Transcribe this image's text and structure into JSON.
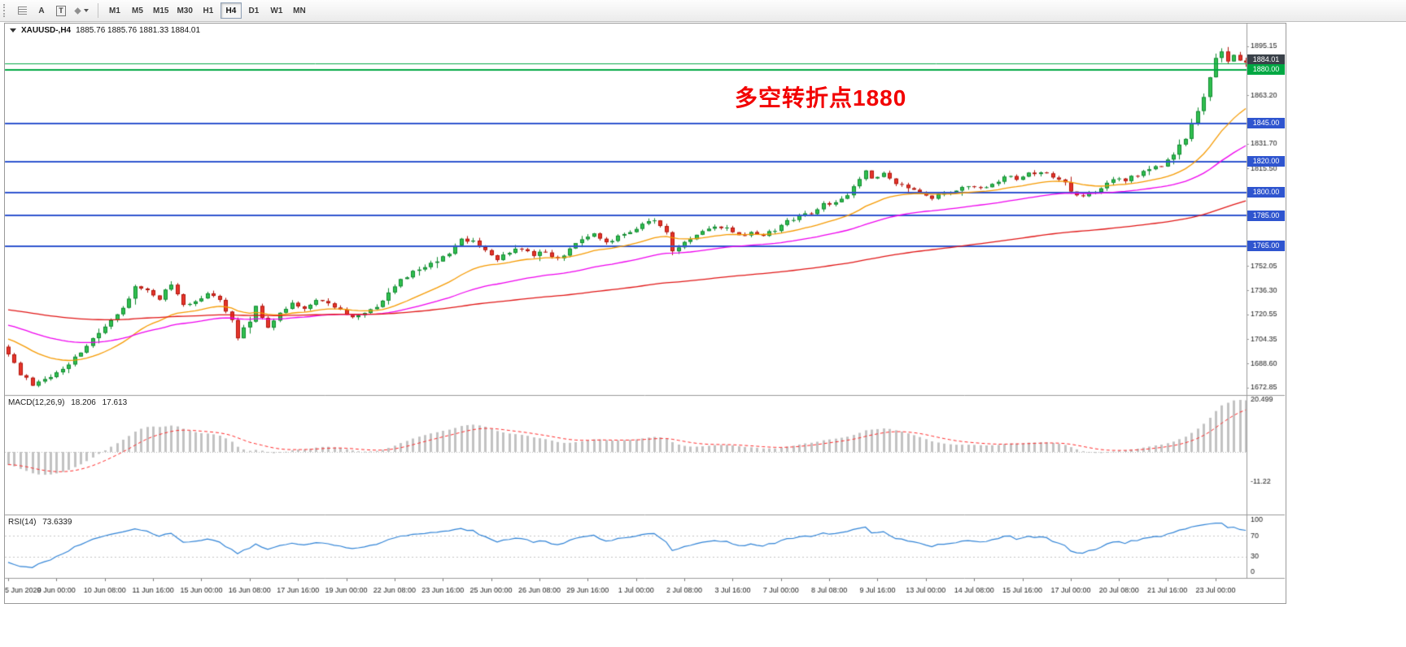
{
  "toolbar": {
    "buttons": [
      {
        "name": "chart-grid",
        "label": ""
      },
      {
        "name": "annotation-letter",
        "label": "A"
      },
      {
        "name": "text-tool",
        "label": "T"
      },
      {
        "name": "shapes-dropdown",
        "label": ""
      }
    ],
    "timeframes": [
      {
        "label": "M1"
      },
      {
        "label": "M5"
      },
      {
        "label": "M15"
      },
      {
        "label": "M30"
      },
      {
        "label": "H1"
      },
      {
        "label": "H4"
      },
      {
        "label": "D1"
      },
      {
        "label": "W1"
      },
      {
        "label": "MN"
      }
    ],
    "active_timeframe": "H4"
  },
  "chart": {
    "symbol_title": "XAUUSD-,H4",
    "ohlc_text": "1885.76 1885.76 1881.33 1884.01",
    "annotation_text": "多空转折点1880",
    "axis": {
      "price_ticks": [
        {
          "label": "1895.15",
          "price": 1895.15
        },
        {
          "label": "1863.20",
          "price": 1863.2
        },
        {
          "label": "1831.70",
          "price": 1831.7
        },
        {
          "label": "1815.50",
          "price": 1815.5
        },
        {
          "label": "1752.05",
          "price": 1752.05
        },
        {
          "label": "1736.30",
          "price": 1736.3
        },
        {
          "label": "1720.55",
          "price": 1720.55
        },
        {
          "label": "1704.35",
          "price": 1704.35
        },
        {
          "label": "1688.60",
          "price": 1688.6
        },
        {
          "label": "1672.85",
          "price": 1672.85
        }
      ],
      "time_labels": [
        "5 Jun 2020",
        "9 Jun 00:00",
        "10 Jun 08:00",
        "11 Jun 16:00",
        "15 Jun 00:00",
        "16 Jun 08:00",
        "17 Jun 16:00",
        "19 Jun 00:00",
        "22 Jun 08:00",
        "23 Jun 16:00",
        "25 Jun 00:00",
        "26 Jun 08:00",
        "29 Jun 16:00",
        "1 Jul 00:00",
        "2 Jul 08:00",
        "3 Jul 16:00",
        "7 Jul 00:00",
        "8 Jul 08:00",
        "9 Jul 16:00",
        "13 Jul 00:00",
        "14 Jul 08:00",
        "15 Jul 16:00",
        "17 Jul 00:00",
        "20 Jul 08:00",
        "21 Jul 16:00",
        "23 Jul 00:00"
      ]
    },
    "price_labels": [
      {
        "label": "1884.01",
        "price": 1884.01,
        "bg": "#3a4149",
        "type": "current"
      },
      {
        "label": "1880.00",
        "price": 1880.0,
        "bg": "#00a843",
        "type": "hline-green"
      },
      {
        "label": "1845.00",
        "price": 1845.0,
        "bg": "#2f55cf",
        "type": "hline-blue"
      },
      {
        "label": "1820.00",
        "price": 1820.0,
        "bg": "#2f55cf",
        "type": "hline-blue"
      },
      {
        "label": "1800.00",
        "price": 1800.0,
        "bg": "#2f55cf",
        "type": "hline-blue"
      },
      {
        "label": "1785.00",
        "price": 1785.0,
        "bg": "#2f55cf",
        "type": "hline-blue"
      },
      {
        "label": "1765.00",
        "price": 1765.0,
        "bg": "#2f55cf",
        "type": "hline-blue"
      }
    ]
  },
  "indicators": {
    "macd": {
      "title": "MACD(12,26,9)",
      "value_main": "18.206",
      "value_signal": "17.613",
      "scale_top": "20.499",
      "scale_bottom": "-11.22"
    },
    "rsi": {
      "title": "RSI(14)",
      "value": "73.6339",
      "levels": [
        "100",
        "70",
        "30",
        "0"
      ]
    }
  },
  "colors": {
    "bull": "#30bf4f",
    "bull_edge": "#0f8a2f",
    "bear": "#e5352b",
    "bear_edge": "#b2140b",
    "macd_hist": "#c2c2c2",
    "macd_signal": "#ff2b2b",
    "rsi_line": "#3083d6",
    "annotation": "#f20000",
    "hline_blue": "#2f55cf",
    "hline_green": "#00a843",
    "current_label_bg": "#3a4149"
  },
  "chart_data": {
    "type": "candlestick",
    "symbol": "XAUUSD",
    "period": "H4",
    "visible_range": {
      "from": "5 Jun 2020",
      "to": "23 Jul 2020"
    },
    "price_axis_range": [
      1669.0,
      1909.5
    ],
    "ohlc_current": {
      "open": 1885.76,
      "high": 1885.76,
      "low": 1881.33,
      "close": 1884.01
    },
    "horizontal_lines": [
      {
        "price": 1884.01,
        "color": "#00a843",
        "width": 1,
        "role": "current-price"
      },
      {
        "price": 1880.0,
        "color": "#00a843",
        "width": 2,
        "role": "pivot-1880"
      },
      {
        "price": 1845.0,
        "color": "#2f55cf",
        "width": 2,
        "role": "level"
      },
      {
        "price": 1820.0,
        "color": "#2f55cf",
        "width": 2,
        "role": "level"
      },
      {
        "price": 1800.0,
        "color": "#2f55cf",
        "width": 2,
        "role": "level"
      },
      {
        "price": 1785.0,
        "color": "#2f55cf",
        "width": 2,
        "role": "level"
      },
      {
        "price": 1765.0,
        "color": "#2f55cf",
        "width": 2,
        "role": "level"
      }
    ],
    "moving_averages": [
      {
        "period": 21,
        "method": "ema",
        "color": "#f59a00"
      },
      {
        "period": 50,
        "method": "ema",
        "color": "#ee00ee"
      },
      {
        "period": 150,
        "method": "ema",
        "color": "#e01616"
      }
    ],
    "macd": {
      "fast": 12,
      "slow": 26,
      "signal": 9
    },
    "rsi_period": 14,
    "n_candles": 206,
    "candles_per_label": 8,
    "price_anchors": [
      [
        0,
        1694
      ],
      [
        2,
        1682
      ],
      [
        4,
        1675
      ],
      [
        6,
        1678
      ],
      [
        8,
        1682
      ],
      [
        10,
        1689
      ],
      [
        11,
        1693
      ],
      [
        13,
        1700
      ],
      [
        15,
        1708
      ],
      [
        17,
        1716
      ],
      [
        19,
        1724
      ],
      [
        21,
        1740
      ],
      [
        23,
        1737
      ],
      [
        25,
        1731
      ],
      [
        27,
        1741
      ],
      [
        29,
        1727
      ],
      [
        31,
        1728
      ],
      [
        33,
        1734
      ],
      [
        35,
        1731
      ],
      [
        37,
        1716
      ],
      [
        38,
        1706
      ],
      [
        40,
        1716
      ],
      [
        41,
        1725
      ],
      [
        43,
        1713
      ],
      [
        45,
        1722
      ],
      [
        47,
        1727
      ],
      [
        49,
        1724
      ],
      [
        51,
        1730
      ],
      [
        53,
        1727
      ],
      [
        55,
        1723
      ],
      [
        57,
        1719
      ],
      [
        59,
        1722
      ],
      [
        61,
        1726
      ],
      [
        63,
        1735
      ],
      [
        65,
        1743
      ],
      [
        67,
        1748
      ],
      [
        69,
        1752
      ],
      [
        71,
        1755
      ],
      [
        73,
        1761
      ],
      [
        75,
        1770
      ],
      [
        77,
        1768
      ],
      [
        79,
        1762
      ],
      [
        81,
        1757
      ],
      [
        83,
        1761
      ],
      [
        85,
        1764
      ],
      [
        87,
        1759
      ],
      [
        89,
        1762
      ],
      [
        91,
        1756
      ],
      [
        93,
        1763
      ],
      [
        95,
        1770
      ],
      [
        97,
        1773
      ],
      [
        99,
        1768
      ],
      [
        101,
        1771
      ],
      [
        103,
        1774
      ],
      [
        105,
        1780
      ],
      [
        107,
        1781
      ],
      [
        109,
        1775
      ],
      [
        110,
        1762
      ],
      [
        112,
        1768
      ],
      [
        113,
        1770
      ],
      [
        115,
        1774
      ],
      [
        117,
        1778
      ],
      [
        119,
        1776
      ],
      [
        121,
        1772
      ],
      [
        123,
        1774
      ],
      [
        125,
        1772
      ],
      [
        127,
        1776
      ],
      [
        129,
        1782
      ],
      [
        131,
        1784
      ],
      [
        133,
        1787
      ],
      [
        135,
        1792
      ],
      [
        137,
        1794
      ],
      [
        139,
        1799
      ],
      [
        141,
        1809
      ],
      [
        142,
        1814
      ],
      [
        143,
        1809
      ],
      [
        145,
        1812
      ],
      [
        147,
        1806
      ],
      [
        149,
        1803
      ],
      [
        151,
        1800
      ],
      [
        153,
        1797
      ],
      [
        155,
        1799
      ],
      [
        157,
        1801
      ],
      [
        159,
        1804
      ],
      [
        161,
        1802
      ],
      [
        163,
        1806
      ],
      [
        165,
        1810
      ],
      [
        167,
        1809
      ],
      [
        169,
        1812
      ],
      [
        171,
        1814
      ],
      [
        173,
        1810
      ],
      [
        175,
        1806
      ],
      [
        177,
        1797
      ],
      [
        179,
        1800
      ],
      [
        181,
        1803
      ],
      [
        183,
        1808
      ],
      [
        185,
        1808
      ],
      [
        187,
        1812
      ],
      [
        189,
        1816
      ],
      [
        191,
        1818
      ],
      [
        193,
        1824
      ],
      [
        195,
        1836
      ],
      [
        197,
        1852
      ],
      [
        198,
        1862
      ],
      [
        199,
        1876
      ],
      [
        200,
        1888
      ],
      [
        201,
        1893
      ],
      [
        202,
        1886
      ],
      [
        203,
        1889
      ],
      [
        204,
        1886
      ],
      [
        205,
        1884
      ]
    ]
  }
}
